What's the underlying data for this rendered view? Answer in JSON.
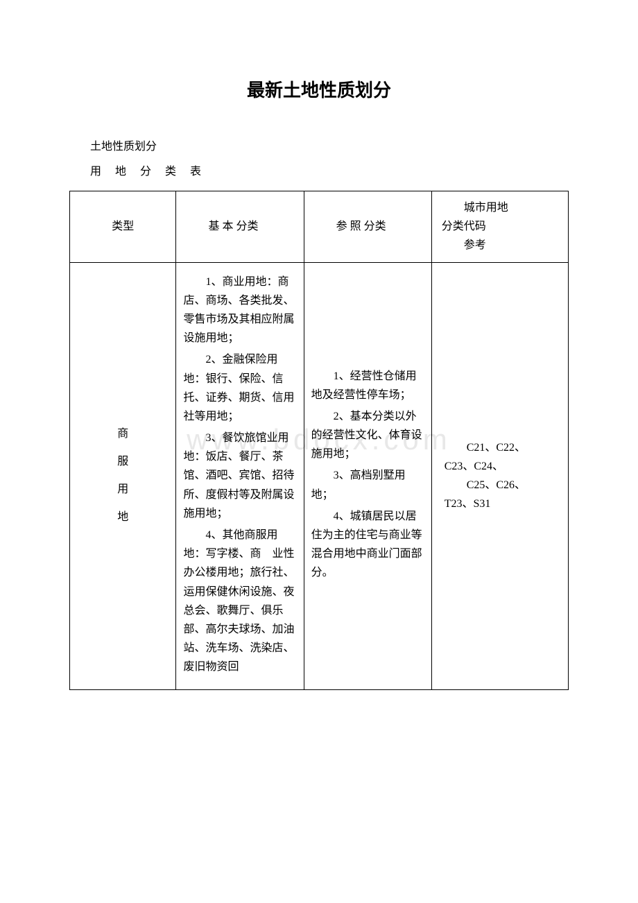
{
  "title": "最新土地性质划分",
  "subtitle": "土地性质划分",
  "table_heading": "用 地 分 类 表",
  "watermark": "www.bdocx.com",
  "headers": {
    "type": "类型",
    "basic": "　　基 本 分类",
    "reference": "　　参 照 分类",
    "code_line1": "城市用地",
    "code_line2": "分类代码",
    "code_line3": "参考"
  },
  "row1": {
    "type_l1": "商",
    "type_l2": "服",
    "type_l3": "用",
    "type_l4": "地",
    "basic_p1": "1、商业用地：商店、商场、各类批发、零售市场及其相应附属设施用地；",
    "basic_p2": "2、金融保险用地：银行、保险、信托、证券、期货、信用社等用地；",
    "basic_p3": "3、餐饮旅馆业用地：饭店、餐厅、茶馆、酒吧、宾馆、招待所、度假村等及附属设施用地；",
    "basic_p4": "4、其他商服用地：写字楼、商　业性办公楼用地；旅行社、运用保健休闲设施、夜总会、歌舞厅、俱乐部、高尔夫球场、加油站、洗车场、洗染店、废旧物资回",
    "ref_p1": "1、经营性仓储用地及经营性停车场；",
    "ref_p2": "2、基本分类以外的经营性文化、体育设施用地；",
    "ref_p3": "3、高档别墅用地；",
    "ref_p4": "4、城镇居民以居住为主的住宅与商业等混合用地中商业门面部分。",
    "code_l1": "C21、C22、",
    "code_l2": "C23、C24、",
    "code_l3": "C25、C26、",
    "code_l4": "T23、S31"
  }
}
